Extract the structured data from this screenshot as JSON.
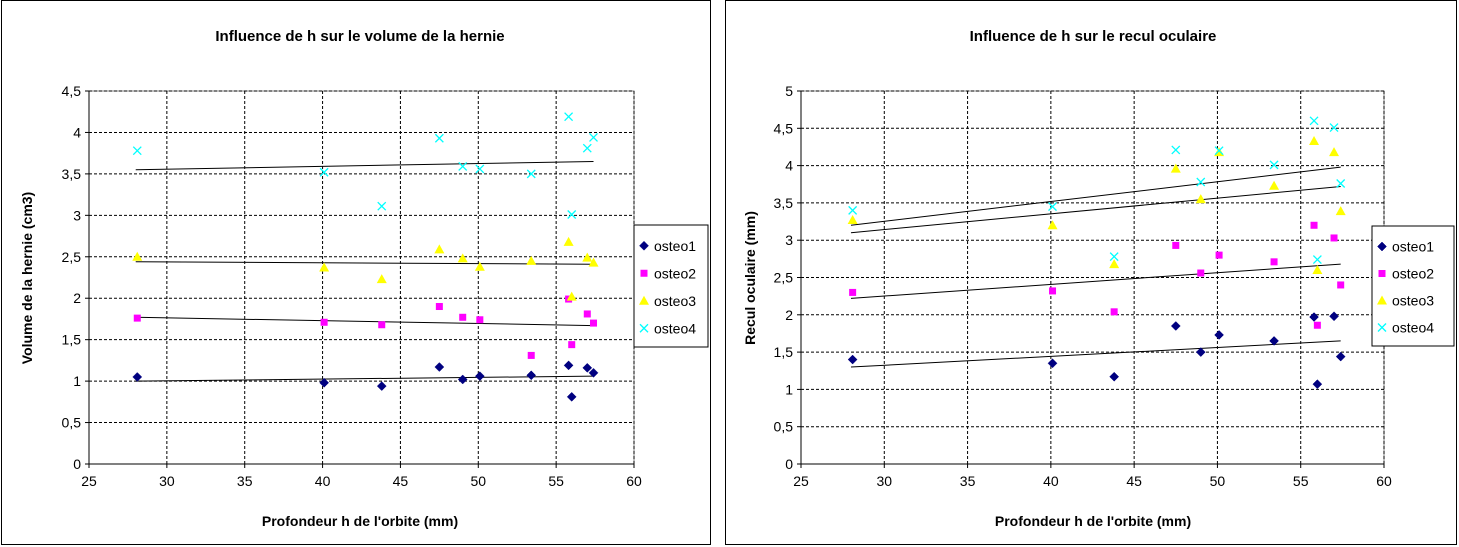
{
  "chart_data": [
    {
      "type": "scatter",
      "title": "Influence de h sur le volume de la hernie",
      "xlabel": "Profondeur h de l'orbite (mm)",
      "ylabel": "Volume de la hernie (cm3)",
      "xlim": [
        25,
        60
      ],
      "ylim": [
        0,
        4.5
      ],
      "xticks": [
        25,
        30,
        35,
        40,
        45,
        50,
        55,
        60
      ],
      "xtick_labels": [
        "25",
        "30",
        "35",
        "40",
        "45",
        "50",
        "55",
        "60"
      ],
      "yticks": [
        0,
        0.5,
        1,
        1.5,
        2,
        2.5,
        3,
        3.5,
        4,
        4.5
      ],
      "ytick_labels": [
        "0",
        "0,5",
        "1",
        "1,5",
        "2",
        "2,5",
        "3",
        "3,5",
        "4",
        "4,5"
      ],
      "grid": true,
      "legend_position": "right",
      "series": [
        {
          "name": "osteo1",
          "marker": "diamond",
          "color": "#000080",
          "x": [
            28.1,
            40.1,
            43.8,
            47.5,
            49.0,
            50.1,
            53.4,
            55.8,
            56.0,
            57.0,
            57.4
          ],
          "y": [
            1.05,
            0.98,
            0.94,
            1.17,
            1.02,
            1.06,
            1.07,
            1.19,
            0.81,
            1.16,
            1.1
          ],
          "trend": [
            [
              28,
              1.0
            ],
            [
              57.4,
              1.06
            ]
          ]
        },
        {
          "name": "osteo2",
          "marker": "square",
          "color": "#FF00FF",
          "x": [
            28.1,
            40.1,
            43.8,
            47.5,
            49.0,
            50.1,
            53.4,
            55.8,
            56.0,
            57.0,
            57.4
          ],
          "y": [
            1.76,
            1.71,
            1.68,
            1.9,
            1.77,
            1.74,
            1.31,
            1.99,
            1.44,
            1.81,
            1.7
          ],
          "trend": [
            [
              28,
              1.77
            ],
            [
              57.4,
              1.67
            ]
          ]
        },
        {
          "name": "osteo3",
          "marker": "triangle",
          "color": "#FFFF00",
          "x": [
            28.1,
            40.1,
            43.8,
            47.5,
            49.0,
            50.1,
            53.4,
            55.8,
            56.0,
            57.0,
            57.4
          ],
          "y": [
            2.5,
            2.37,
            2.23,
            2.59,
            2.48,
            2.38,
            2.45,
            2.68,
            2.02,
            2.49,
            2.43
          ],
          "trend": [
            [
              28,
              2.44
            ],
            [
              57.4,
              2.41
            ]
          ]
        },
        {
          "name": "osteo4",
          "marker": "x",
          "color": "#00FFFF",
          "x": [
            28.1,
            40.1,
            43.8,
            47.5,
            49.0,
            50.1,
            53.4,
            55.8,
            56.0,
            57.0,
            57.4
          ],
          "y": [
            3.78,
            3.52,
            3.11,
            3.93,
            3.59,
            3.56,
            3.5,
            4.19,
            3.01,
            3.81,
            3.94
          ],
          "trend": [
            [
              28,
              3.55
            ],
            [
              57.4,
              3.65
            ]
          ]
        }
      ]
    },
    {
      "type": "scatter",
      "title": "Influence de h sur le recul oculaire",
      "xlabel": "Profondeur h de l'orbite (mm)",
      "ylabel": "Recul oculaire (mm)",
      "xlim": [
        25,
        60
      ],
      "ylim": [
        0,
        5
      ],
      "xticks": [
        25,
        30,
        35,
        40,
        45,
        50,
        55,
        60
      ],
      "xtick_labels": [
        "25",
        "30",
        "35",
        "40",
        "45",
        "50",
        "55",
        "60"
      ],
      "yticks": [
        0,
        0.5,
        1,
        1.5,
        2,
        2.5,
        3,
        3.5,
        4,
        4.5,
        5
      ],
      "ytick_labels": [
        "0",
        "0,5",
        "1",
        "1,5",
        "2",
        "2,5",
        "3",
        "3,5",
        "4",
        "4,5",
        "5"
      ],
      "grid": true,
      "legend_position": "right",
      "series": [
        {
          "name": "osteo1",
          "marker": "diamond",
          "color": "#000080",
          "x": [
            28.1,
            40.1,
            43.8,
            47.5,
            49.0,
            50.1,
            53.4,
            55.8,
            56.0,
            57.0,
            57.4
          ],
          "y": [
            1.4,
            1.35,
            1.17,
            1.85,
            1.5,
            1.73,
            1.65,
            1.97,
            1.07,
            1.98,
            1.44
          ],
          "trend": [
            [
              28,
              1.3
            ],
            [
              57.4,
              1.65
            ]
          ]
        },
        {
          "name": "osteo2",
          "marker": "square",
          "color": "#FF00FF",
          "x": [
            28.1,
            40.1,
            43.8,
            47.5,
            49.0,
            50.1,
            53.4,
            55.8,
            56.0,
            57.0,
            57.4
          ],
          "y": [
            2.3,
            2.32,
            2.04,
            2.93,
            2.56,
            2.8,
            2.71,
            3.2,
            1.86,
            3.03,
            2.4
          ],
          "trend": [
            [
              28,
              2.22
            ],
            [
              57.4,
              2.68
            ]
          ]
        },
        {
          "name": "osteo3",
          "marker": "triangle",
          "color": "#FFFF00",
          "x": [
            28.1,
            40.1,
            43.8,
            47.5,
            49.0,
            50.1,
            53.4,
            55.8,
            56.0,
            57.0,
            57.4
          ],
          "y": [
            3.27,
            3.2,
            2.68,
            3.96,
            3.55,
            4.18,
            3.73,
            4.33,
            2.6,
            4.18,
            3.39
          ],
          "trend": [
            [
              28,
              3.1
            ],
            [
              57.4,
              3.72
            ]
          ]
        },
        {
          "name": "osteo4",
          "marker": "x",
          "color": "#00FFFF",
          "x": [
            28.1,
            40.1,
            43.8,
            47.5,
            49.0,
            50.1,
            53.4,
            55.8,
            56.0,
            57.0,
            57.4
          ],
          "y": [
            3.4,
            3.45,
            2.78,
            4.21,
            3.78,
            4.2,
            4.01,
            4.6,
            2.74,
            4.51,
            3.76
          ],
          "trend": [
            [
              28,
              3.2
            ],
            [
              57.4,
              3.98
            ]
          ]
        }
      ]
    }
  ]
}
